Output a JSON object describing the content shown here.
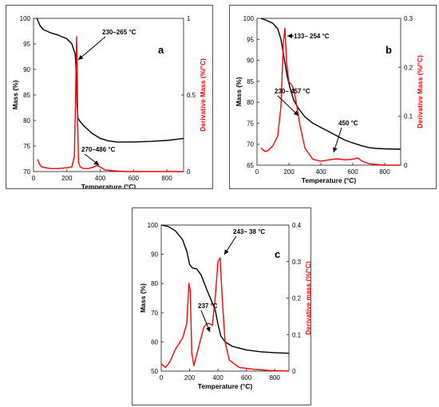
{
  "chart_data": [
    {
      "type": "line",
      "panel_letter": "a",
      "xlabel": "Temperature (°C)",
      "ylabel_left": "Mass (%)",
      "ylabel_right": "Derivative Mass (%/°C)",
      "xlim": [
        0,
        900
      ],
      "ylim_left": [
        70,
        100
      ],
      "ylim_right": [
        0,
        1
      ],
      "x_ticks": [
        0,
        200,
        400,
        600,
        800
      ],
      "y_ticks_left": [
        70,
        75,
        80,
        85,
        90,
        95,
        100
      ],
      "y_ticks_right": [
        0,
        0.5,
        1
      ],
      "y_tick_labels_right": [
        "0",
        "0.5",
        "1"
      ],
      "grid": false,
      "annotations": [
        {
          "text": "230–265 °C",
          "x": 260,
          "y": 96.5
        },
        {
          "text": "270–486 °C",
          "x": 380,
          "y": 71.5
        }
      ],
      "series": [
        {
          "axis": "left",
          "color": "#000000",
          "x": [
            20,
            40,
            60,
            100,
            150,
            200,
            230,
            250,
            258,
            262,
            266,
            275,
            300,
            350,
            400,
            450,
            500,
            600,
            700,
            800,
            900
          ],
          "y": [
            100,
            98.5,
            97.8,
            97.2,
            96.7,
            96,
            95,
            93,
            88,
            83,
            80.5,
            80,
            79,
            77.5,
            76.5,
            76,
            75.8,
            75.8,
            75.9,
            76.1,
            76.5
          ]
        },
        {
          "axis": "right",
          "color": "#ff0000",
          "x": [
            25,
            35,
            50,
            100,
            150,
            200,
            230,
            245,
            252,
            258,
            262,
            265,
            270,
            280,
            300,
            330,
            360,
            380,
            400,
            430,
            480,
            550,
            700,
            900
          ],
          "y": [
            0.08,
            0.05,
            0.03,
            0.02,
            0.02,
            0.025,
            0.03,
            0.1,
            0.45,
            0.88,
            0.7,
            0.3,
            0.06,
            0.03,
            0.02,
            0.02,
            0.03,
            0.04,
            0.03,
            0.01,
            0.005,
            0,
            0,
            0
          ]
        }
      ]
    },
    {
      "type": "line",
      "panel_letter": "b",
      "xlabel": "Temperature (°C)",
      "ylabel_left": "Mass (%)",
      "ylabel_right": "Derivative Mass (%/°C)",
      "xlim": [
        0,
        900
      ],
      "ylim_left": [
        65,
        100
      ],
      "ylim_right": [
        0,
        0.3
      ],
      "x_ticks": [
        0,
        200,
        400,
        600,
        800
      ],
      "y_ticks_left": [
        65,
        70,
        75,
        80,
        85,
        90,
        95,
        100
      ],
      "y_ticks_right": [
        0,
        0.1,
        0.2,
        0.3
      ],
      "y_tick_labels_right": [
        "0",
        "0.1",
        "0.2",
        "0.3"
      ],
      "grid": false,
      "annotations": [
        {
          "text": "133– 254 °C",
          "x": 185,
          "y": 0.29
        },
        {
          "text": "230– 457 °C",
          "x": 230,
          "y": 0.154
        },
        {
          "text": "450 °C",
          "x": 480,
          "y": 0.06
        }
      ],
      "series": [
        {
          "axis": "left",
          "color": "#000000",
          "x": [
            25,
            60,
            100,
            130,
            150,
            170,
            190,
            210,
            230,
            260,
            300,
            350,
            400,
            450,
            500,
            550,
            600,
            650,
            700,
            750,
            800,
            900
          ],
          "y": [
            100,
            99.5,
            98.8,
            97.5,
            95,
            90.5,
            86,
            83,
            80.5,
            78.5,
            76.5,
            75,
            74,
            73,
            72,
            71,
            70.3,
            69.7,
            69.2,
            69,
            68.9,
            68.8
          ]
        },
        {
          "axis": "right",
          "color": "#ff0000",
          "x": [
            25,
            50,
            70,
            100,
            130,
            150,
            165,
            175,
            185,
            200,
            215,
            230,
            250,
            270,
            300,
            350,
            400,
            450,
            500,
            550,
            600,
            630,
            660,
            700,
            800,
            900
          ],
          "y": [
            0.035,
            0.028,
            0.03,
            0.04,
            0.06,
            0.12,
            0.25,
            0.28,
            0.21,
            0.17,
            0.165,
            0.155,
            0.12,
            0.08,
            0.035,
            0.012,
            0.008,
            0.011,
            0.013,
            0.011,
            0.012,
            0.015,
            0.008,
            0.003,
            0,
            0
          ]
        }
      ]
    },
    {
      "type": "line",
      "panel_letter": "c",
      "xlabel": "Temperature (°C)",
      "ylabel_left": "Mass (%)",
      "ylabel_right": "Derivative mass (%/°C)",
      "xlim": [
        0,
        900
      ],
      "ylim_left": [
        50,
        100
      ],
      "ylim_right": [
        0,
        0.4
      ],
      "x_ticks": [
        0,
        200,
        400,
        600,
        800
      ],
      "y_ticks_left": [
        50,
        60,
        70,
        80,
        90,
        100
      ],
      "y_ticks_right": [
        0,
        0.1,
        0.2,
        0.3,
        0.4
      ],
      "y_tick_labels_right": [
        "0",
        "0.1",
        "0.2",
        "0.3",
        "0.4"
      ],
      "grid": false,
      "annotations": [
        {
          "text": "243– 38 °C",
          "x": 430,
          "y": 0.35
        },
        {
          "text": "237 °C",
          "x": 320,
          "y": 0.13
        }
      ],
      "series": [
        {
          "axis": "left",
          "color": "#000000",
          "x": [
            0,
            50,
            100,
            150,
            180,
            200,
            220,
            250,
            280,
            320,
            350,
            380,
            400,
            420,
            450,
            500,
            600,
            700,
            800,
            900
          ],
          "y": [
            100,
            99.5,
            98,
            95,
            91,
            86.5,
            85.3,
            85,
            83,
            78,
            74.5,
            71,
            66,
            62,
            60,
            58.5,
            57.2,
            56.6,
            56.3,
            56.1
          ]
        },
        {
          "axis": "right",
          "color": "#ff0000",
          "x": [
            0,
            30,
            60,
            100,
            150,
            180,
            195,
            205,
            215,
            230,
            260,
            300,
            320,
            340,
            360,
            380,
            400,
            415,
            430,
            450,
            480,
            550,
            650,
            750,
            900
          ],
          "y": [
            0.02,
            0.01,
            0.025,
            0.06,
            0.09,
            0.13,
            0.24,
            0.22,
            0.05,
            0.015,
            0.06,
            0.12,
            0.13,
            0.13,
            0.125,
            0.2,
            0.3,
            0.31,
            0.2,
            0.08,
            0.03,
            0.01,
            0.005,
            0.002,
            0
          ]
        }
      ]
    }
  ]
}
